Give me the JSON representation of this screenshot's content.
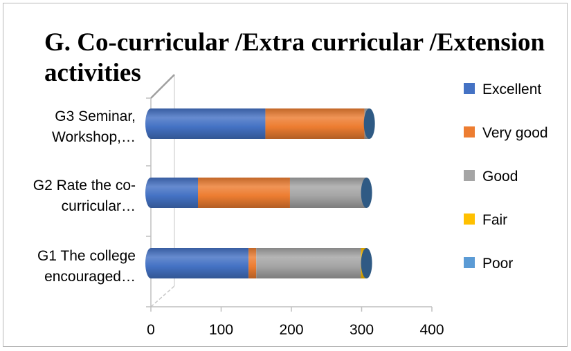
{
  "chart_data": {
    "type": "bar",
    "orientation": "horizontal",
    "stacked": true,
    "style": "3d-cylinder",
    "title": "G. Co-curricular /Extra curricular /Extension activities",
    "xlabel": "",
    "ylabel": "",
    "xlim": [
      0,
      400
    ],
    "x_ticks": [
      "0",
      "100",
      "200",
      "300",
      "400"
    ],
    "grid": false,
    "legend_position": "right",
    "categories": [
      [
        "G3 Seminar,",
        "Workshop,…"
      ],
      [
        "G2 Rate the co-",
        "curricular…"
      ],
      [
        "G1 The college",
        "encouraged…"
      ]
    ],
    "series": [
      {
        "name": "Excellent",
        "color": "#4472c4",
        "values": [
          163,
          67,
          139
        ]
      },
      {
        "name": "Very good",
        "color": "#ed7d31",
        "values": [
          141,
          131,
          11
        ]
      },
      {
        "name": "Good",
        "color": "#a5a5a5",
        "values": [
          7,
          109,
          149
        ]
      },
      {
        "name": "Fair",
        "color": "#ffc000",
        "values": [
          0,
          0,
          8
        ]
      },
      {
        "name": "Poor",
        "color": "#5b9bd5",
        "values": [
          0,
          0,
          0
        ]
      }
    ]
  }
}
